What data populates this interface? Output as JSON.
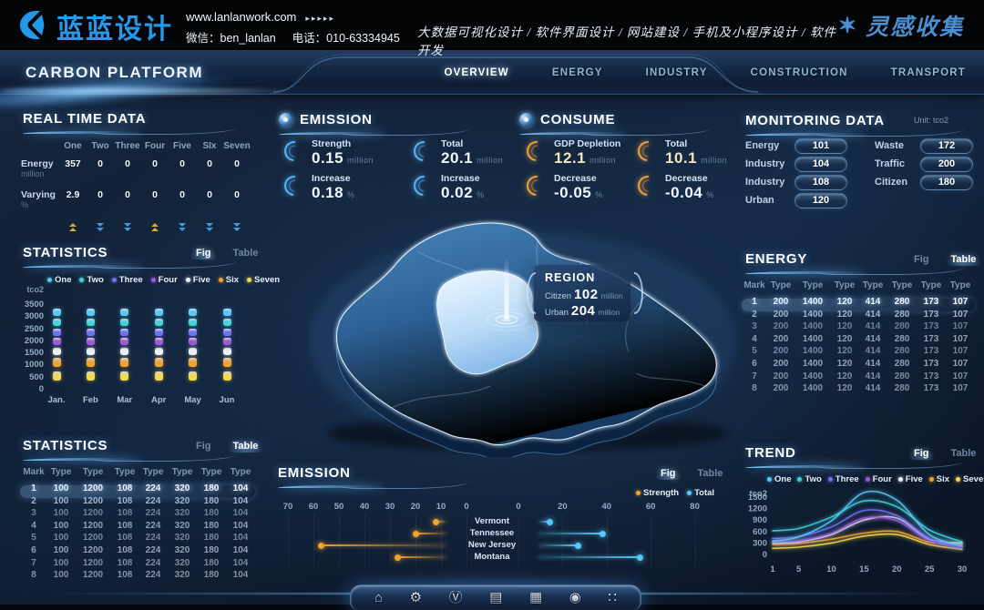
{
  "brand_bar": {
    "logo_text": "蓝蓝设计",
    "url": "www.lanlanwork.com",
    "url_arrows": "▸▸▸▸▸",
    "wechat": "微信：ben_lanlan",
    "phone": "电话：010-63334945",
    "services": "大数据可视化设计 / 软件界面设计 / 网站建设 / 手机及小程序设计 / 软件开发",
    "collect_label": "灵感收集",
    "brand_color": "#2499e8"
  },
  "nav": {
    "title": "CARBON PLATFORM",
    "tabs": [
      {
        "label": "OVERVIEW",
        "active": true
      },
      {
        "label": "ENERGY",
        "active": false
      },
      {
        "label": "INDUSTRY",
        "active": false
      },
      {
        "label": "CONSTRUCTION",
        "active": false
      },
      {
        "label": "TRANSPORT",
        "active": false
      }
    ]
  },
  "real_time": {
    "title": "REAL TIME DATA",
    "columns": [
      "One",
      "Two",
      "Three",
      "Four",
      "Five",
      "SIx",
      "Seven"
    ],
    "rows": [
      {
        "label": "Energy",
        "unit": "million",
        "values": [
          "357",
          "0",
          "0",
          "0",
          "0",
          "0",
          "0"
        ]
      },
      {
        "label": "Varying",
        "unit": "%",
        "values": [
          "2.9",
          "0",
          "0",
          "0",
          "0",
          "0",
          "0"
        ]
      }
    ],
    "trends": [
      "up",
      "down",
      "down",
      "up",
      "down",
      "down",
      "down"
    ],
    "trend_up_color": "#d8a83c",
    "trend_down_color": "#3f9be2"
  },
  "statistics_fig": {
    "title": "STATISTICS",
    "fig_label": "Fig",
    "table_label": "Table",
    "active_view": "fig",
    "unit": "tco2"
  },
  "statistics_table": {
    "title": "STATISTICS",
    "fig_label": "Fig",
    "table_label": "Table",
    "active_view": "table",
    "columns": [
      "Mark",
      "Type",
      "Type",
      "Type",
      "Type",
      "Type",
      "Type",
      "Type"
    ],
    "rows": [
      [
        "1",
        "100",
        "1200",
        "108",
        "224",
        "320",
        "180",
        "104"
      ],
      [
        "2",
        "100",
        "1200",
        "108",
        "224",
        "320",
        "180",
        "104"
      ],
      [
        "3",
        "100",
        "1200",
        "108",
        "224",
        "320",
        "180",
        "104"
      ],
      [
        "4",
        "100",
        "1200",
        "108",
        "224",
        "320",
        "180",
        "104"
      ],
      [
        "5",
        "100",
        "1200",
        "108",
        "224",
        "320",
        "180",
        "104"
      ],
      [
        "6",
        "100",
        "1200",
        "108",
        "224",
        "320",
        "180",
        "104"
      ],
      [
        "7",
        "100",
        "1200",
        "108",
        "224",
        "320",
        "180",
        "104"
      ],
      [
        "8",
        "100",
        "1200",
        "108",
        "224",
        "320",
        "180",
        "104"
      ]
    ],
    "selected_row": "1"
  },
  "emission_kpi": {
    "title": "EMISSION",
    "accent": "#57b8f8",
    "metrics": [
      {
        "label": "Strength",
        "value": "0.15",
        "unit": "million"
      },
      {
        "label": "Total",
        "value": "20.1",
        "unit": "million"
      },
      {
        "label": "Increase",
        "value": "0.18",
        "unit": "%"
      },
      {
        "label": "Increase",
        "value": "0.02",
        "unit": "%"
      }
    ]
  },
  "consume_kpi": {
    "title": "CONSUME",
    "accent": "#f0a23c",
    "metrics": [
      {
        "label": "GDP Depletion",
        "value": "12.1",
        "unit": "million",
        "warm": true
      },
      {
        "label": "Total",
        "value": "10.1",
        "unit": "million",
        "warm": true
      },
      {
        "label": "Decrease",
        "value": "-0.05",
        "unit": "%"
      },
      {
        "label": "Decrease",
        "value": "-0.04",
        "unit": "%"
      }
    ]
  },
  "region_tooltip": {
    "title": "REGION",
    "rows": [
      {
        "label": "Citizen",
        "value": "102",
        "unit": "million"
      },
      {
        "label": "Urban",
        "value": "204",
        "unit": "million"
      }
    ]
  },
  "monitoring": {
    "title": "MONITORING DATA",
    "unit_label": "Unit: tco2",
    "left_items": [
      {
        "label": "Energy",
        "value": "101"
      },
      {
        "label": "Industry",
        "value": "104"
      },
      {
        "label": "Industry",
        "value": "108"
      },
      {
        "label": "Urban",
        "value": "120"
      }
    ],
    "right_items": [
      {
        "label": "Waste",
        "value": "172"
      },
      {
        "label": "Traffic",
        "value": "200"
      },
      {
        "label": "Citizen",
        "value": "180"
      }
    ]
  },
  "energy_table": {
    "title": "ENERGY",
    "fig_label": "Fig",
    "table_label": "Table",
    "active_view": "table",
    "columns": [
      "Mark",
      "Type",
      "Type",
      "Type",
      "Type",
      "Type",
      "Type",
      "Type"
    ],
    "rows": [
      [
        "1",
        "200",
        "1400",
        "120",
        "414",
        "280",
        "173",
        "107"
      ],
      [
        "2",
        "200",
        "1400",
        "120",
        "414",
        "280",
        "173",
        "107"
      ],
      [
        "3",
        "200",
        "1400",
        "120",
        "414",
        "280",
        "173",
        "107"
      ],
      [
        "4",
        "200",
        "1400",
        "120",
        "414",
        "280",
        "173",
        "107"
      ],
      [
        "5",
        "200",
        "1400",
        "120",
        "414",
        "280",
        "173",
        "107"
      ],
      [
        "6",
        "200",
        "1400",
        "120",
        "414",
        "280",
        "173",
        "107"
      ],
      [
        "7",
        "200",
        "1400",
        "120",
        "414",
        "280",
        "173",
        "107"
      ],
      [
        "8",
        "200",
        "1400",
        "120",
        "414",
        "280",
        "173",
        "107"
      ]
    ],
    "selected_row": "1"
  },
  "trend": {
    "title": "TREND",
    "fig_label": "Fig",
    "table_label": "Table",
    "active_view": "fig",
    "unit": "tco2"
  },
  "emission_chart_panel": {
    "title": "EMISSION",
    "fig_label": "Fig",
    "table_label": "Table",
    "active_view": "fig"
  },
  "dock": {
    "icons": [
      "home-icon",
      "gear-icon",
      "circle-v-icon",
      "server-icon",
      "presentation-chart-icon",
      "nut-icon",
      "apps-grid-icon"
    ],
    "glyphs": [
      "⌂",
      "⚙",
      "Ⓥ",
      "▤",
      "▦",
      "◉",
      "∷"
    ]
  },
  "series_colors": {
    "One": "#58c8f8",
    "Two": "#42d2d8",
    "Three": "#6b74f2",
    "Four": "#9a5ad8",
    "Five": "#eef3f8",
    "Six": "#f0a232",
    "Seven": "#f2da4e"
  },
  "chart_data": [
    {
      "id": "statistics_fig",
      "type": "bar",
      "subtype": "segmented-value-band-columns",
      "title": "STATISTICS",
      "ylabel": "tco2",
      "ylim": [
        0,
        3500
      ],
      "yticks": [
        0,
        500,
        1000,
        1500,
        2000,
        2500,
        3000,
        3500
      ],
      "categories": [
        "Jan.",
        "Feb",
        "Mar",
        "Apr",
        "May",
        "Jun"
      ],
      "legend": [
        "One",
        "Two",
        "Three",
        "Four",
        "Five",
        "Six",
        "Seven"
      ],
      "legend_position": "top",
      "grid": false,
      "series": [
        {
          "name": "One",
          "color": "#58c8f8",
          "band": [
            3000,
            3300
          ]
        },
        {
          "name": "Two",
          "color": "#42d2d8",
          "band": [
            2600,
            2900
          ]
        },
        {
          "name": "Three",
          "color": "#6b74f2",
          "band": [
            2200,
            2500
          ]
        },
        {
          "name": "Four",
          "color": "#9a5ad8",
          "band": [
            1800,
            2100
          ]
        },
        {
          "name": "Five",
          "color": "#eef3f8",
          "band": [
            1380,
            1700
          ]
        },
        {
          "name": "Six",
          "color": "#f0a232",
          "band": [
            900,
            1280
          ]
        },
        {
          "name": "Seven",
          "color": "#f2da4e",
          "band": [
            350,
            700
          ]
        }
      ],
      "note": "every month shows the same seven colored value bands"
    },
    {
      "id": "trend",
      "type": "line",
      "title": "TREND",
      "ylabel": "tco2",
      "ylim": [
        0,
        1800
      ],
      "yticks": [
        0,
        300,
        600,
        900,
        1200,
        1500
      ],
      "x": [
        1,
        5,
        10,
        15,
        20,
        25,
        30
      ],
      "xticks": [
        1,
        5,
        10,
        15,
        20,
        25,
        30
      ],
      "legend": [
        "One",
        "Two",
        "Three",
        "Four",
        "Five",
        "Six",
        "Seven"
      ],
      "legend_position": "top",
      "grid": false,
      "series": [
        {
          "name": "One",
          "color": "#58c8f8",
          "values": [
            350,
            460,
            880,
            1620,
            1420,
            520,
            220
          ]
        },
        {
          "name": "Two",
          "color": "#42d2d8",
          "values": [
            620,
            680,
            980,
            1400,
            1250,
            640,
            330
          ]
        },
        {
          "name": "Three",
          "color": "#6b74f2",
          "values": [
            420,
            470,
            720,
            1150,
            1020,
            420,
            200
          ]
        },
        {
          "name": "Four",
          "color": "#9a5ad8",
          "values": [
            330,
            360,
            560,
            950,
            880,
            360,
            160
          ]
        },
        {
          "name": "Five",
          "color": "#dde6ee",
          "values": [
            300,
            330,
            520,
            900,
            950,
            400,
            300
          ]
        },
        {
          "name": "Six",
          "color": "#f0a232",
          "values": [
            260,
            290,
            400,
            560,
            600,
            320,
            260
          ]
        },
        {
          "name": "Seven",
          "color": "#f2da4e",
          "values": [
            160,
            190,
            300,
            480,
            520,
            260,
            130
          ]
        }
      ]
    },
    {
      "id": "emission_chart",
      "type": "bar",
      "subtype": "diverging-lollipop",
      "title": "EMISSION",
      "categories": [
        "Vermont",
        "Tennessee",
        "New Jersey",
        "Montana"
      ],
      "legend": [
        "Strength",
        "Total"
      ],
      "left_axis_ticks": [
        70,
        60,
        50,
        40,
        30,
        20,
        10,
        0
      ],
      "right_axis_ticks": [
        0,
        20,
        40,
        60,
        80
      ],
      "series": [
        {
          "name": "Strength",
          "color": "#f0a232",
          "axis": "left",
          "values": [
            12,
            20,
            57,
            27
          ]
        },
        {
          "name": "Total",
          "color": "#58c8f8",
          "axis": "right",
          "values": [
            14,
            38,
            27,
            55
          ]
        }
      ]
    }
  ]
}
